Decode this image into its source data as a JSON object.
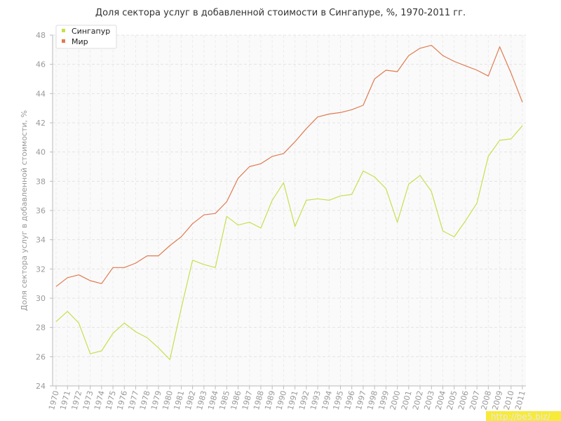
{
  "chart_data": {
    "type": "line",
    "title": "Доля сектора услуг в добавленной стоимости в Сингапуре, %, 1970-2011 гг.",
    "xlabel": "",
    "ylabel": "Доля сектора услуг в добавленной стоимости, %",
    "ylim": [
      24,
      48
    ],
    "yticks": [
      24,
      26,
      28,
      30,
      32,
      34,
      36,
      38,
      40,
      42,
      44,
      46,
      48
    ],
    "grid": true,
    "legend_position": "top-left",
    "x": [
      "1970",
      "1971",
      "1972",
      "1973",
      "1974",
      "1975",
      "1976",
      "1977",
      "1978",
      "1979",
      "1980",
      "1981",
      "1982",
      "1983",
      "1984",
      "1985",
      "1986",
      "1987",
      "1988",
      "1989",
      "1990",
      "1991",
      "1992",
      "1993",
      "1994",
      "1995",
      "1996",
      "1997",
      "1998",
      "1999",
      "2000",
      "2001",
      "2002",
      "2003",
      "2004",
      "2005",
      "2006",
      "2007",
      "2008",
      "2009",
      "2010",
      "2011"
    ],
    "series": [
      {
        "name": "Сингапур",
        "color": "#c5e04f",
        "values": [
          28.4,
          29.1,
          28.3,
          26.2,
          26.4,
          27.6,
          28.3,
          27.7,
          27.3,
          26.6,
          25.8,
          29.3,
          32.6,
          32.3,
          32.1,
          35.6,
          35.0,
          35.2,
          34.8,
          36.7,
          37.9,
          34.9,
          36.7,
          36.8,
          36.7,
          37.0,
          37.1,
          38.7,
          38.3,
          37.5,
          35.2,
          37.8,
          38.4,
          37.3,
          34.6,
          34.2,
          35.3,
          36.5,
          39.7,
          40.8,
          40.9,
          41.8
        ]
      },
      {
        "name": "Мир",
        "color": "#e07a50",
        "values": [
          30.8,
          31.4,
          31.6,
          31.2,
          31.0,
          32.1,
          32.1,
          32.4,
          32.9,
          32.9,
          33.6,
          34.2,
          35.1,
          35.7,
          35.8,
          36.6,
          38.2,
          39.0,
          39.2,
          39.7,
          39.9,
          40.7,
          41.6,
          42.4,
          42.6,
          42.7,
          42.9,
          43.2,
          45.0,
          45.6,
          45.5,
          46.6,
          47.1,
          47.3,
          46.6,
          46.2,
          45.9,
          45.6,
          45.2,
          47.2,
          45.4,
          43.4
        ]
      }
    ]
  },
  "watermark": "http://be5.biz/"
}
